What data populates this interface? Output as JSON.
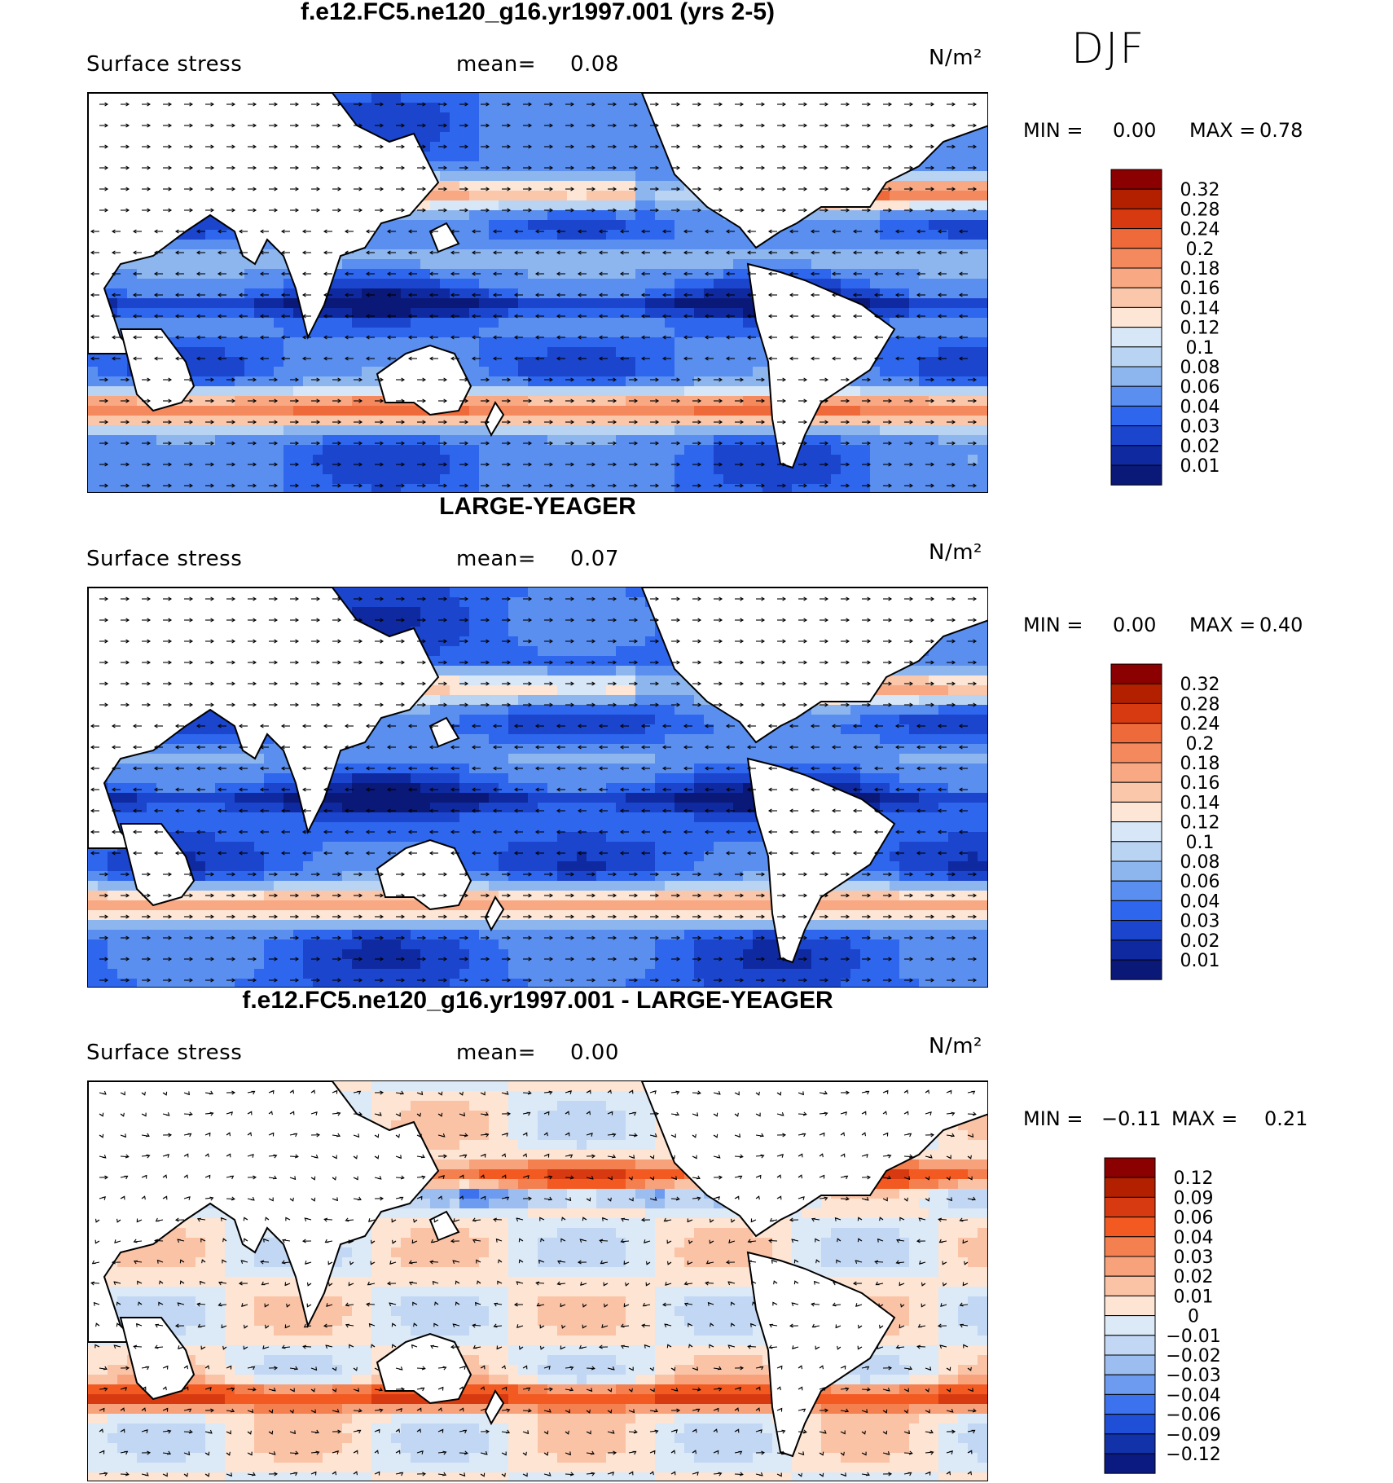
{
  "season": "DJF",
  "panels": [
    {
      "title": "f.e12.FC5.ne120_g16.yr1997.001 (yrs 2-5)",
      "variable": "Surface stress",
      "mean_label": "mean=",
      "mean_value": "0.08",
      "units": "N/m²",
      "min_label": "MIN =",
      "min_value": "0.00",
      "max_label": "MAX =",
      "max_value": "0.78",
      "colorbar": [
        "0.32",
        "0.28",
        "0.24",
        "0.2",
        "0.18",
        "0.16",
        "0.14",
        "0.12",
        "0.1",
        "0.08",
        "0.06",
        "0.04",
        "0.03",
        "0.02",
        "0.01"
      ],
      "colors": [
        "#8b0000",
        "#b22000",
        "#d73a10",
        "#ee6a3a",
        "#f4895e",
        "#f8a882",
        "#fbc7aa",
        "#fde6d5",
        "#d8e7f7",
        "#b9d3f2",
        "#8db6ef",
        "#5a8ff0",
        "#2e66ee",
        "#1b45cc",
        "#0f2aa0",
        "#0a1878"
      ]
    },
    {
      "title": "LARGE-YEAGER",
      "variable": "Surface stress",
      "mean_label": "mean=",
      "mean_value": "0.07",
      "units": "N/m²",
      "min_label": "MIN =",
      "min_value": "0.00",
      "max_label": "MAX =",
      "max_value": "0.40",
      "colorbar": [
        "0.32",
        "0.28",
        "0.24",
        "0.2",
        "0.18",
        "0.16",
        "0.14",
        "0.12",
        "0.1",
        "0.08",
        "0.06",
        "0.04",
        "0.03",
        "0.02",
        "0.01"
      ],
      "colors": [
        "#8b0000",
        "#b22000",
        "#d73a10",
        "#ee6a3a",
        "#f4895e",
        "#f8a882",
        "#fbc7aa",
        "#fde6d5",
        "#d8e7f7",
        "#b9d3f2",
        "#8db6ef",
        "#5a8ff0",
        "#2e66ee",
        "#1b45cc",
        "#0f2aa0",
        "#0a1878"
      ]
    },
    {
      "title": "f.e12.FC5.ne120_g16.yr1997.001 - LARGE-YEAGER",
      "variable": "Surface stress",
      "mean_label": "mean=",
      "mean_value": "0.00",
      "units": "N/m²",
      "min_label": "MIN =",
      "min_value": "−0.11",
      "max_label": "MAX =",
      "max_value": "0.21",
      "colorbar": [
        "0.12",
        "0.09",
        "0.06",
        "0.04",
        "0.03",
        "0.02",
        "0.01",
        "0",
        "−0.01",
        "−0.02",
        "−0.03",
        "−0.04",
        "−0.06",
        "−0.09",
        "−0.12"
      ],
      "colors": [
        "#8b0000",
        "#b22000",
        "#d73a10",
        "#f25a22",
        "#f48050",
        "#f8a27c",
        "#fbc3a6",
        "#fde4d3",
        "#dce9f7",
        "#c2d7f3",
        "#9cbdf0",
        "#6c9bef",
        "#3c72ee",
        "#1f4fd6",
        "#1232aa",
        "#0a1a80"
      ]
    }
  ]
}
